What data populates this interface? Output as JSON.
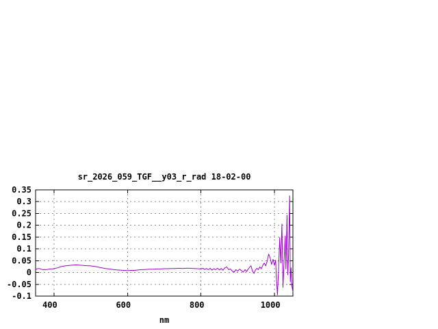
{
  "page": {
    "background": "#ffffff"
  },
  "chart_data": {
    "type": "line",
    "title": "sr_2026_059_TGF__y03_r_rad 18-02-00",
    "xlabel": "nm",
    "ylabel": "",
    "xlim": [
      350,
      1050
    ],
    "ylim": [
      -0.1,
      0.35
    ],
    "x_ticks": [
      400,
      600,
      800,
      1000
    ],
    "x_tick_labels": [
      "400",
      "600",
      "800",
      "1000"
    ],
    "y_ticks": [
      -0.1,
      -0.05,
      0,
      0.05,
      0.1,
      0.15,
      0.2,
      0.25,
      0.3,
      0.35
    ],
    "y_tick_labels": [
      "-0.1",
      "-0.05",
      "0",
      "0.05",
      "0.1",
      "0.15",
      "0.2",
      "0.25",
      "0.3",
      "0.35"
    ],
    "grid": true,
    "legend_position": "none",
    "line_color": "#9a00cd",
    "grid_color": "#8a8a8a",
    "frame_color": "#000000",
    "series": [
      {
        "name": "sr_2026_059_TGF__y03_r_rad",
        "x": [
          350,
          355,
          360,
          365,
          370,
          375,
          380,
          385,
          390,
          395,
          400,
          410,
          420,
          430,
          440,
          450,
          460,
          470,
          480,
          490,
          500,
          510,
          520,
          530,
          540,
          550,
          560,
          570,
          580,
          590,
          600,
          610,
          620,
          630,
          640,
          650,
          660,
          670,
          680,
          690,
          700,
          710,
          720,
          730,
          740,
          750,
          760,
          770,
          780,
          790,
          800,
          805,
          810,
          815,
          820,
          825,
          830,
          835,
          840,
          845,
          850,
          855,
          860,
          865,
          870,
          875,
          880,
          885,
          890,
          895,
          900,
          905,
          910,
          915,
          920,
          924,
          928,
          932,
          936,
          940,
          944,
          948,
          952,
          956,
          960,
          964,
          968,
          972,
          976,
          980,
          984,
          988,
          992,
          996,
          1000,
          1003,
          1005,
          1008,
          1011,
          1014,
          1017,
          1020,
          1023,
          1026,
          1029,
          1031,
          1034,
          1036,
          1038,
          1041,
          1043,
          1045,
          1047,
          1050
        ],
        "y": [
          0.013,
          0.016,
          0.017,
          0.014,
          0.012,
          0.013,
          0.012,
          0.014,
          0.015,
          0.015,
          0.016,
          0.02,
          0.025,
          0.028,
          0.03,
          0.031,
          0.032,
          0.031,
          0.03,
          0.029,
          0.028,
          0.026,
          0.023,
          0.02,
          0.017,
          0.015,
          0.013,
          0.011,
          0.01,
          0.009,
          0.008,
          0.009,
          0.009,
          0.011,
          0.012,
          0.013,
          0.014,
          0.014,
          0.015,
          0.015,
          0.016,
          0.016,
          0.017,
          0.017,
          0.018,
          0.017,
          0.018,
          0.018,
          0.017,
          0.016,
          0.015,
          0.018,
          0.013,
          0.017,
          0.012,
          0.018,
          0.01,
          0.016,
          0.012,
          0.018,
          0.011,
          0.017,
          0.01,
          0.02,
          0.024,
          0.012,
          0.015,
          0.006,
          0.002,
          0.012,
          0.006,
          0.014,
          0.008,
          0.002,
          0.012,
          0.004,
          0.014,
          0.022,
          0.028,
          0.006,
          -0.004,
          0.01,
          0.018,
          0.012,
          0.024,
          0.016,
          0.03,
          0.04,
          0.028,
          0.048,
          0.078,
          0.062,
          0.034,
          0.056,
          0.03,
          0.052,
          -0.02,
          -0.095,
          0.02,
          0.148,
          0.04,
          0.205,
          -0.063,
          0.05,
          0.155,
          0.015,
          0.243,
          -0.01,
          0.07,
          0.325,
          -0.04,
          0.02,
          -0.055,
          -0.082
        ]
      }
    ]
  }
}
